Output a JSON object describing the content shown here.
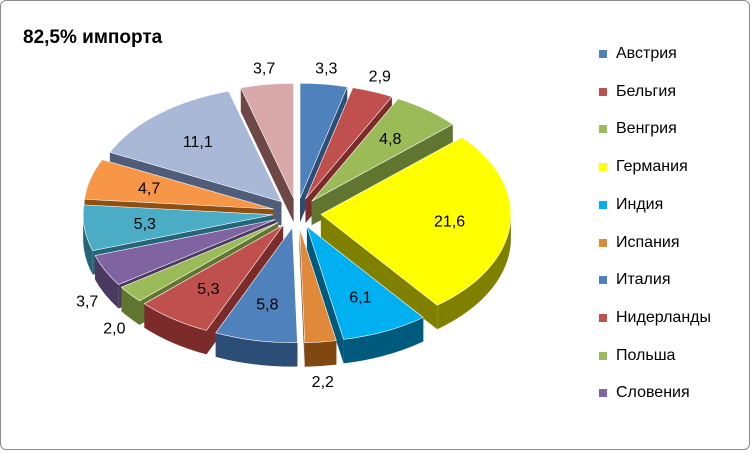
{
  "chart_data": {
    "type": "pie",
    "title": "82,5% импорта",
    "slices": [
      {
        "label": "Австрия",
        "value": 3.3,
        "display": "3,3",
        "color": "#4f81bd",
        "side": "#2c4d75"
      },
      {
        "label": "Бельгия",
        "value": 2.9,
        "display": "2,9",
        "color": "#c0504d",
        "side": "#7b2c2a"
      },
      {
        "label": "Венгрия",
        "value": 4.8,
        "display": "4,8",
        "color": "#9bbb59",
        "side": "#5f7530"
      },
      {
        "label": "Германия",
        "value": 21.6,
        "display": "21,6",
        "color": "#ffff00",
        "side": "#7f7f00"
      },
      {
        "label": "Индия",
        "value": 6.1,
        "display": "6,1",
        "color": "#00b0f0",
        "side": "#005a7d"
      },
      {
        "label": "Испания",
        "value": 2.2,
        "display": "2,2",
        "color": "#e0893a",
        "side": "#7f4810"
      },
      {
        "label": "Италия",
        "value": 5.8,
        "display": "5,8",
        "color": "#4f81bd",
        "side": "#2c4d75"
      },
      {
        "label": "Нидерланды",
        "value": 5.3,
        "display": "5,3",
        "color": "#c0504d",
        "side": "#7b2c2a"
      },
      {
        "label": "Польша",
        "value": 2.0,
        "display": "2,0",
        "color": "#9bbb59",
        "side": "#5f7530"
      },
      {
        "label": "Словения",
        "value": 3.7,
        "display": "3,7",
        "color": "#8064a2",
        "side": "#4b3a60"
      },
      {
        "label": "",
        "value": 5.3,
        "display": "5,3",
        "color": "#4bacc6",
        "side": "#246677"
      },
      {
        "label": "",
        "value": 4.7,
        "display": "4,7",
        "color": "#f79646",
        "side": "#8f4f10"
      },
      {
        "label": "",
        "value": 11.1,
        "display": "11,1",
        "color": "#aab8d8",
        "side": "#4f5d7a"
      },
      {
        "label": "",
        "value": 3.7,
        "display": "3,7",
        "color": "#d9a8a8",
        "side": "#6e4747"
      }
    ],
    "legend_position": "right",
    "legend": [
      {
        "label": "Австрия",
        "color": "#4f81bd"
      },
      {
        "label": "Бельгия",
        "color": "#c0504d"
      },
      {
        "label": "Венгрия",
        "color": "#9bbb59"
      },
      {
        "label": "Германия",
        "color": "#ffff00"
      },
      {
        "label": "Индия",
        "color": "#00b0f0"
      },
      {
        "label": "Испания",
        "color": "#e0893a"
      },
      {
        "label": "Италия",
        "color": "#4f81bd"
      },
      {
        "label": "Нидерланды",
        "color": "#c0504d"
      },
      {
        "label": "Польша",
        "color": "#9bbb59"
      },
      {
        "label": "Словения",
        "color": "#8064a2"
      }
    ]
  }
}
